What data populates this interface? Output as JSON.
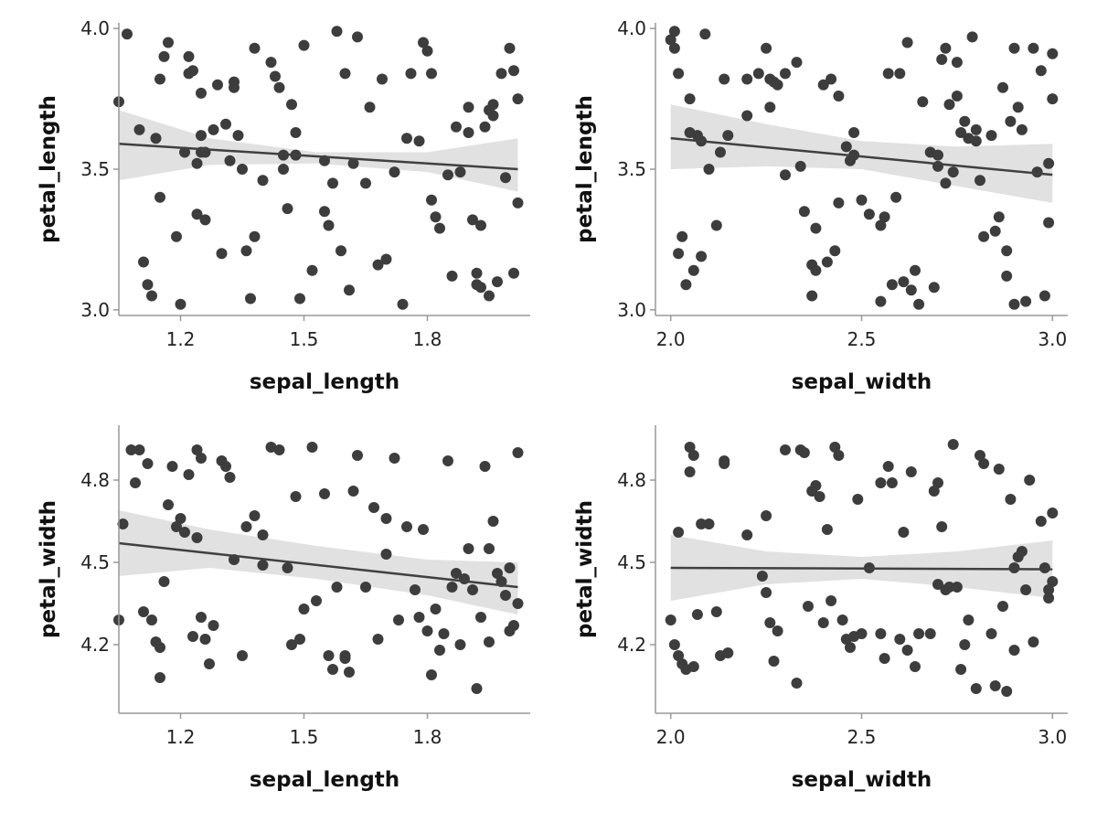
{
  "chart_data": [
    {
      "type": "scatter",
      "title": "",
      "xlabel": "sepal_length",
      "ylabel": "petal_length",
      "xlim": [
        1.05,
        2.05
      ],
      "ylim": [
        2.98,
        4.02
      ],
      "xticks": [
        1.2,
        1.5,
        1.8
      ],
      "xtick_labels": [
        "1.2",
        "1.5",
        "1.8"
      ],
      "yticks": [
        3.0,
        3.5,
        4.0
      ],
      "ytick_labels": [
        "3.0",
        "3.5",
        "4.0"
      ],
      "grid": false,
      "legend": "none",
      "colors": {
        "points": "#3d3d3d",
        "line": "#404040",
        "band": "#d9d9d9"
      },
      "regression": {
        "x": [
          1.05,
          2.02
        ],
        "y": [
          3.59,
          3.5
        ]
      },
      "ci_band": {
        "x": [
          1.05,
          1.27,
          1.53,
          1.8,
          2.02
        ],
        "lower": [
          3.46,
          3.515,
          3.52,
          3.49,
          3.42
        ],
        "upper": [
          3.71,
          3.61,
          3.56,
          3.56,
          3.61
        ]
      },
      "points": {
        "x": [
          1.05,
          1.07,
          1.1,
          1.11,
          1.12,
          1.13,
          1.14,
          1.15,
          1.16,
          1.17,
          1.19,
          1.2,
          1.21,
          1.22,
          1.22,
          1.23,
          1.24,
          1.24,
          1.25,
          1.25,
          1.26,
          1.26,
          1.28,
          1.29,
          1.3,
          1.31,
          1.32,
          1.33,
          1.33,
          1.34,
          1.36,
          1.37,
          1.38,
          1.38,
          1.4,
          1.42,
          1.43,
          1.44,
          1.46,
          1.47,
          1.48,
          1.48,
          1.49,
          1.5,
          1.52,
          1.55,
          1.56,
          1.57,
          1.58,
          1.59,
          1.6,
          1.61,
          1.62,
          1.63,
          1.66,
          1.68,
          1.69,
          1.7,
          1.72,
          1.74,
          1.76,
          1.78,
          1.79,
          1.8,
          1.81,
          1.81,
          1.82,
          1.83,
          1.86,
          1.87,
          1.88,
          1.9,
          1.91,
          1.92,
          1.92,
          1.93,
          1.93,
          1.94,
          1.95,
          1.95,
          1.96,
          1.96,
          1.97,
          1.98,
          1.99,
          2.0,
          2.01,
          2.01,
          2.02,
          2.02,
          1.35,
          1.55,
          1.75,
          1.9,
          1.15,
          1.45,
          1.65,
          1.85,
          1.25,
          1.45
        ],
        "y": [
          3.74,
          3.98,
          3.64,
          3.17,
          3.09,
          3.05,
          3.61,
          3.82,
          3.9,
          3.95,
          3.26,
          3.02,
          3.56,
          3.84,
          3.9,
          3.85,
          3.52,
          3.34,
          3.77,
          3.62,
          3.56,
          3.32,
          3.64,
          3.8,
          3.2,
          3.66,
          3.53,
          3.81,
          3.79,
          3.62,
          3.21,
          3.04,
          3.26,
          3.93,
          3.46,
          3.88,
          3.83,
          3.79,
          3.36,
          3.73,
          3.63,
          3.55,
          3.04,
          3.94,
          3.14,
          3.35,
          3.3,
          3.45,
          3.99,
          3.21,
          3.84,
          3.07,
          3.52,
          3.97,
          3.72,
          3.16,
          3.82,
          3.18,
          3.49,
          3.02,
          3.84,
          3.6,
          3.95,
          3.92,
          3.39,
          3.84,
          3.33,
          3.29,
          3.12,
          3.65,
          3.49,
          3.72,
          3.32,
          3.13,
          3.09,
          3.3,
          3.08,
          3.65,
          3.71,
          3.05,
          3.73,
          3.69,
          3.1,
          3.84,
          3.47,
          3.93,
          3.85,
          3.13,
          3.38,
          3.75,
          3.5,
          3.53,
          3.61,
          3.63,
          3.4,
          3.5,
          3.45,
          3.48,
          3.56,
          3.55
        ]
      }
    },
    {
      "type": "scatter",
      "title": "",
      "xlabel": "sepal_width",
      "ylabel": "petal_length",
      "xlim": [
        1.96,
        3.04
      ],
      "ylim": [
        2.98,
        4.02
      ],
      "xticks": [
        2.0,
        2.5,
        3.0
      ],
      "xtick_labels": [
        "2.0",
        "2.5",
        "3.0"
      ],
      "yticks": [
        3.0,
        3.5,
        4.0
      ],
      "ytick_labels": [
        "3.0",
        "3.5",
        "4.0"
      ],
      "grid": false,
      "legend": "none",
      "colors": {
        "points": "#3d3d3d",
        "line": "#404040",
        "band": "#d9d9d9"
      },
      "regression": {
        "x": [
          2.0,
          3.0
        ],
        "y": [
          3.61,
          3.48
        ]
      },
      "ci_band": {
        "x": [
          2.0,
          2.25,
          2.5,
          2.75,
          3.0
        ],
        "lower": [
          3.5,
          3.51,
          3.5,
          3.44,
          3.38
        ],
        "upper": [
          3.73,
          3.66,
          3.6,
          3.58,
          3.59
        ]
      },
      "points": {
        "x": [
          2.0,
          2.01,
          2.01,
          2.02,
          2.02,
          2.03,
          2.04,
          2.05,
          2.05,
          2.06,
          2.07,
          2.08,
          2.08,
          2.09,
          2.12,
          2.13,
          2.14,
          2.15,
          2.2,
          2.23,
          2.25,
          2.26,
          2.26,
          2.27,
          2.28,
          2.3,
          2.33,
          2.34,
          2.37,
          2.37,
          2.38,
          2.38,
          2.4,
          2.41,
          2.42,
          2.43,
          2.44,
          2.44,
          2.46,
          2.47,
          2.48,
          2.48,
          2.5,
          2.52,
          2.55,
          2.56,
          2.57,
          2.58,
          2.59,
          2.6,
          2.61,
          2.62,
          2.63,
          2.64,
          2.66,
          2.68,
          2.69,
          2.7,
          2.71,
          2.72,
          2.72,
          2.73,
          2.74,
          2.75,
          2.75,
          2.76,
          2.77,
          2.78,
          2.79,
          2.8,
          2.81,
          2.82,
          2.84,
          2.85,
          2.86,
          2.87,
          2.88,
          2.88,
          2.89,
          2.9,
          2.9,
          2.91,
          2.92,
          2.93,
          2.95,
          2.96,
          2.97,
          2.98,
          2.99,
          2.99,
          3.0,
          3.0,
          2.1,
          2.2,
          2.35,
          2.55,
          2.65,
          2.8,
          2.3,
          2.7
        ],
        "y": [
          3.96,
          3.99,
          3.93,
          3.2,
          3.84,
          3.26,
          3.09,
          3.75,
          3.63,
          3.14,
          3.62,
          3.19,
          3.6,
          3.98,
          3.3,
          3.56,
          3.82,
          3.62,
          3.69,
          3.84,
          3.93,
          3.82,
          3.72,
          3.81,
          3.8,
          3.84,
          3.88,
          3.51,
          3.16,
          3.05,
          3.29,
          3.14,
          3.8,
          3.17,
          3.82,
          3.21,
          3.76,
          3.38,
          3.58,
          3.53,
          3.55,
          3.63,
          3.39,
          3.34,
          3.3,
          3.33,
          3.84,
          3.09,
          3.4,
          3.84,
          3.1,
          3.95,
          3.07,
          3.14,
          3.74,
          3.56,
          3.08,
          3.51,
          3.89,
          3.93,
          3.45,
          3.73,
          3.49,
          3.76,
          3.88,
          3.63,
          3.67,
          3.61,
          3.97,
          3.64,
          3.46,
          3.26,
          3.62,
          3.28,
          3.33,
          3.79,
          3.12,
          3.21,
          3.67,
          3.93,
          3.02,
          3.72,
          3.64,
          3.03,
          3.93,
          3.49,
          3.85,
          3.05,
          3.31,
          3.52,
          3.91,
          3.75,
          3.5,
          3.82,
          3.35,
          3.03,
          3.02,
          3.6,
          3.48,
          3.55
        ]
      }
    },
    {
      "type": "scatter",
      "title": "",
      "xlabel": "sepal_length",
      "ylabel": "petal_width",
      "xlim": [
        1.05,
        2.05
      ],
      "ylim": [
        3.95,
        5.0
      ],
      "xticks": [
        1.2,
        1.5,
        1.8
      ],
      "xtick_labels": [
        "1.2",
        "1.5",
        "1.8"
      ],
      "yticks": [
        4.2,
        4.5,
        4.8
      ],
      "ytick_labels": [
        "4.2",
        "4.5",
        "4.8"
      ],
      "grid": false,
      "legend": "none",
      "colors": {
        "points": "#3d3d3d",
        "line": "#404040",
        "band": "#d9d9d9"
      },
      "regression": {
        "x": [
          1.05,
          2.02
        ],
        "y": [
          4.57,
          4.41
        ]
      },
      "ci_band": {
        "x": [
          1.05,
          1.27,
          1.53,
          1.8,
          2.02
        ],
        "lower": [
          4.45,
          4.48,
          4.44,
          4.38,
          4.31
        ],
        "upper": [
          4.69,
          4.62,
          4.56,
          4.51,
          4.5
        ]
      },
      "points": {
        "x": [
          1.05,
          1.06,
          1.08,
          1.09,
          1.1,
          1.11,
          1.12,
          1.13,
          1.14,
          1.15,
          1.16,
          1.17,
          1.18,
          1.19,
          1.2,
          1.21,
          1.22,
          1.23,
          1.24,
          1.24,
          1.25,
          1.26,
          1.27,
          1.28,
          1.3,
          1.31,
          1.32,
          1.33,
          1.35,
          1.36,
          1.38,
          1.4,
          1.42,
          1.44,
          1.46,
          1.47,
          1.48,
          1.49,
          1.5,
          1.52,
          1.53,
          1.55,
          1.56,
          1.57,
          1.58,
          1.6,
          1.61,
          1.62,
          1.63,
          1.65,
          1.67,
          1.68,
          1.7,
          1.72,
          1.73,
          1.75,
          1.77,
          1.78,
          1.79,
          1.8,
          1.81,
          1.82,
          1.83,
          1.84,
          1.85,
          1.86,
          1.87,
          1.88,
          1.89,
          1.9,
          1.91,
          1.92,
          1.93,
          1.94,
          1.95,
          1.96,
          1.97,
          1.98,
          1.99,
          2.0,
          2.01,
          2.02,
          2.02,
          2.0,
          1.95,
          1.25,
          1.6,
          1.4,
          1.15,
          1.7
        ],
        "y": [
          4.29,
          4.64,
          4.91,
          4.79,
          4.91,
          4.32,
          4.86,
          4.29,
          4.21,
          4.19,
          4.43,
          4.71,
          4.85,
          4.63,
          4.66,
          4.61,
          4.82,
          4.23,
          4.59,
          4.91,
          4.88,
          4.22,
          4.13,
          4.27,
          4.87,
          4.85,
          4.81,
          4.51,
          4.16,
          4.63,
          4.67,
          4.49,
          4.92,
          4.91,
          4.48,
          4.2,
          4.74,
          4.22,
          4.33,
          4.92,
          4.36,
          4.75,
          4.16,
          4.11,
          4.41,
          4.15,
          4.1,
          4.76,
          4.89,
          4.41,
          4.7,
          4.22,
          4.66,
          4.88,
          4.29,
          4.63,
          4.4,
          4.3,
          4.62,
          4.25,
          4.09,
          4.33,
          4.18,
          4.24,
          4.87,
          4.41,
          4.46,
          4.2,
          4.44,
          4.55,
          4.4,
          4.04,
          4.3,
          4.85,
          4.55,
          4.65,
          4.46,
          4.43,
          4.38,
          4.25,
          4.27,
          4.9,
          4.35,
          4.48,
          4.21,
          4.3,
          4.16,
          4.6,
          4.08,
          4.53
        ]
      }
    },
    {
      "type": "scatter",
      "title": "",
      "xlabel": "sepal_width",
      "ylabel": "petal_width",
      "xlim": [
        1.96,
        3.04
      ],
      "ylim": [
        3.95,
        5.0
      ],
      "xticks": [
        2.0,
        2.5,
        3.0
      ],
      "xtick_labels": [
        "2.0",
        "2.5",
        "3.0"
      ],
      "yticks": [
        4.2,
        4.5,
        4.8
      ],
      "ytick_labels": [
        "4.2",
        "4.5",
        "4.8"
      ],
      "grid": false,
      "legend": "none",
      "colors": {
        "points": "#3d3d3d",
        "line": "#404040",
        "band": "#d9d9d9"
      },
      "regression": {
        "x": [
          2.0,
          3.0
        ],
        "y": [
          4.48,
          4.475
        ]
      },
      "ci_band": {
        "x": [
          2.0,
          2.25,
          2.5,
          2.75,
          3.0
        ],
        "lower": [
          4.36,
          4.42,
          4.44,
          4.41,
          4.37
        ],
        "upper": [
          4.6,
          4.54,
          4.52,
          4.54,
          4.58
        ]
      },
      "points": {
        "x": [
          2.0,
          2.01,
          2.02,
          2.02,
          2.03,
          2.04,
          2.05,
          2.05,
          2.06,
          2.06,
          2.07,
          2.08,
          2.1,
          2.12,
          2.13,
          2.14,
          2.14,
          2.15,
          2.2,
          2.24,
          2.25,
          2.26,
          2.27,
          2.28,
          2.3,
          2.33,
          2.34,
          2.35,
          2.36,
          2.37,
          2.38,
          2.39,
          2.4,
          2.41,
          2.42,
          2.43,
          2.44,
          2.45,
          2.46,
          2.47,
          2.48,
          2.49,
          2.5,
          2.52,
          2.55,
          2.56,
          2.57,
          2.58,
          2.6,
          2.61,
          2.62,
          2.63,
          2.64,
          2.65,
          2.68,
          2.69,
          2.7,
          2.71,
          2.72,
          2.73,
          2.74,
          2.75,
          2.76,
          2.77,
          2.78,
          2.8,
          2.81,
          2.82,
          2.84,
          2.85,
          2.86,
          2.87,
          2.88,
          2.89,
          2.9,
          2.91,
          2.92,
          2.93,
          2.94,
          2.95,
          2.97,
          2.98,
          2.99,
          2.99,
          3.0,
          3.0,
          2.25,
          2.55,
          2.7,
          2.9
        ],
        "y": [
          4.29,
          4.2,
          4.16,
          4.61,
          4.13,
          4.11,
          4.83,
          4.92,
          4.89,
          4.12,
          4.31,
          4.64,
          4.64,
          4.32,
          4.16,
          4.87,
          4.86,
          4.17,
          4.6,
          4.45,
          4.39,
          4.28,
          4.14,
          4.25,
          4.91,
          4.06,
          4.91,
          4.9,
          4.34,
          4.76,
          4.78,
          4.74,
          4.28,
          4.62,
          4.36,
          4.92,
          4.89,
          4.29,
          4.22,
          4.19,
          4.23,
          4.73,
          4.24,
          4.48,
          4.79,
          4.15,
          4.85,
          4.79,
          4.22,
          4.61,
          4.18,
          4.83,
          4.12,
          4.24,
          4.24,
          4.76,
          4.79,
          4.63,
          4.4,
          4.41,
          4.93,
          4.41,
          4.11,
          4.2,
          4.29,
          4.04,
          4.89,
          4.86,
          4.24,
          4.05,
          4.84,
          4.34,
          4.03,
          4.73,
          4.18,
          4.52,
          4.54,
          4.4,
          4.8,
          4.21,
          4.65,
          4.48,
          4.37,
          4.4,
          4.68,
          4.43,
          4.67,
          4.24,
          4.42,
          4.48
        ]
      }
    }
  ]
}
